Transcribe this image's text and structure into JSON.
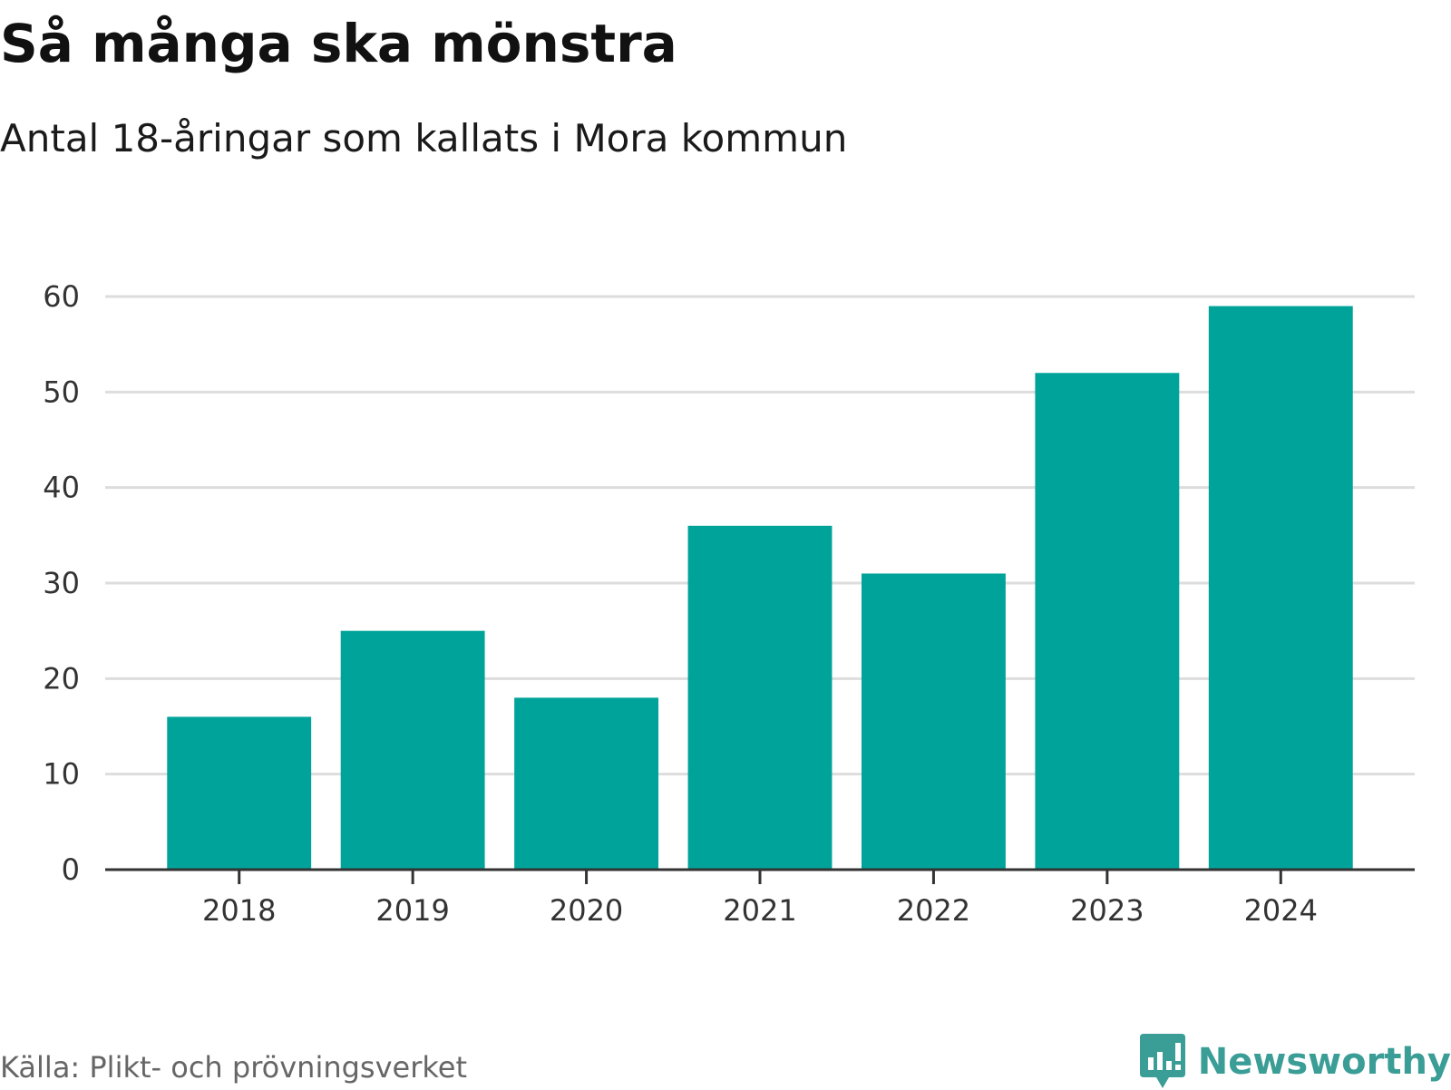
{
  "header": {
    "title": "Så många ska mönstra",
    "subtitle": "Antal 18-åringar som kallats i Mora kommun"
  },
  "footer": {
    "source": "Källa: Plikt- och prövningsverket",
    "brand": "Newsworthy"
  },
  "colors": {
    "bar": "#00a39a",
    "grid": "#dddddd",
    "axis": "#333333",
    "brand": "#3a9d96"
  },
  "chart_data": {
    "type": "bar",
    "title": "Så många ska mönstra",
    "subtitle": "Antal 18-åringar som kallats i Mora kommun",
    "categories": [
      "2018",
      "2019",
      "2020",
      "2021",
      "2022",
      "2023",
      "2024"
    ],
    "values": [
      16,
      25,
      18,
      36,
      31,
      52,
      59
    ],
    "xlabel": "",
    "ylabel": "",
    "ylim": [
      0,
      60
    ],
    "yticks": [
      0,
      10,
      20,
      30,
      40,
      50,
      60
    ],
    "grid": true,
    "legend": "none"
  }
}
